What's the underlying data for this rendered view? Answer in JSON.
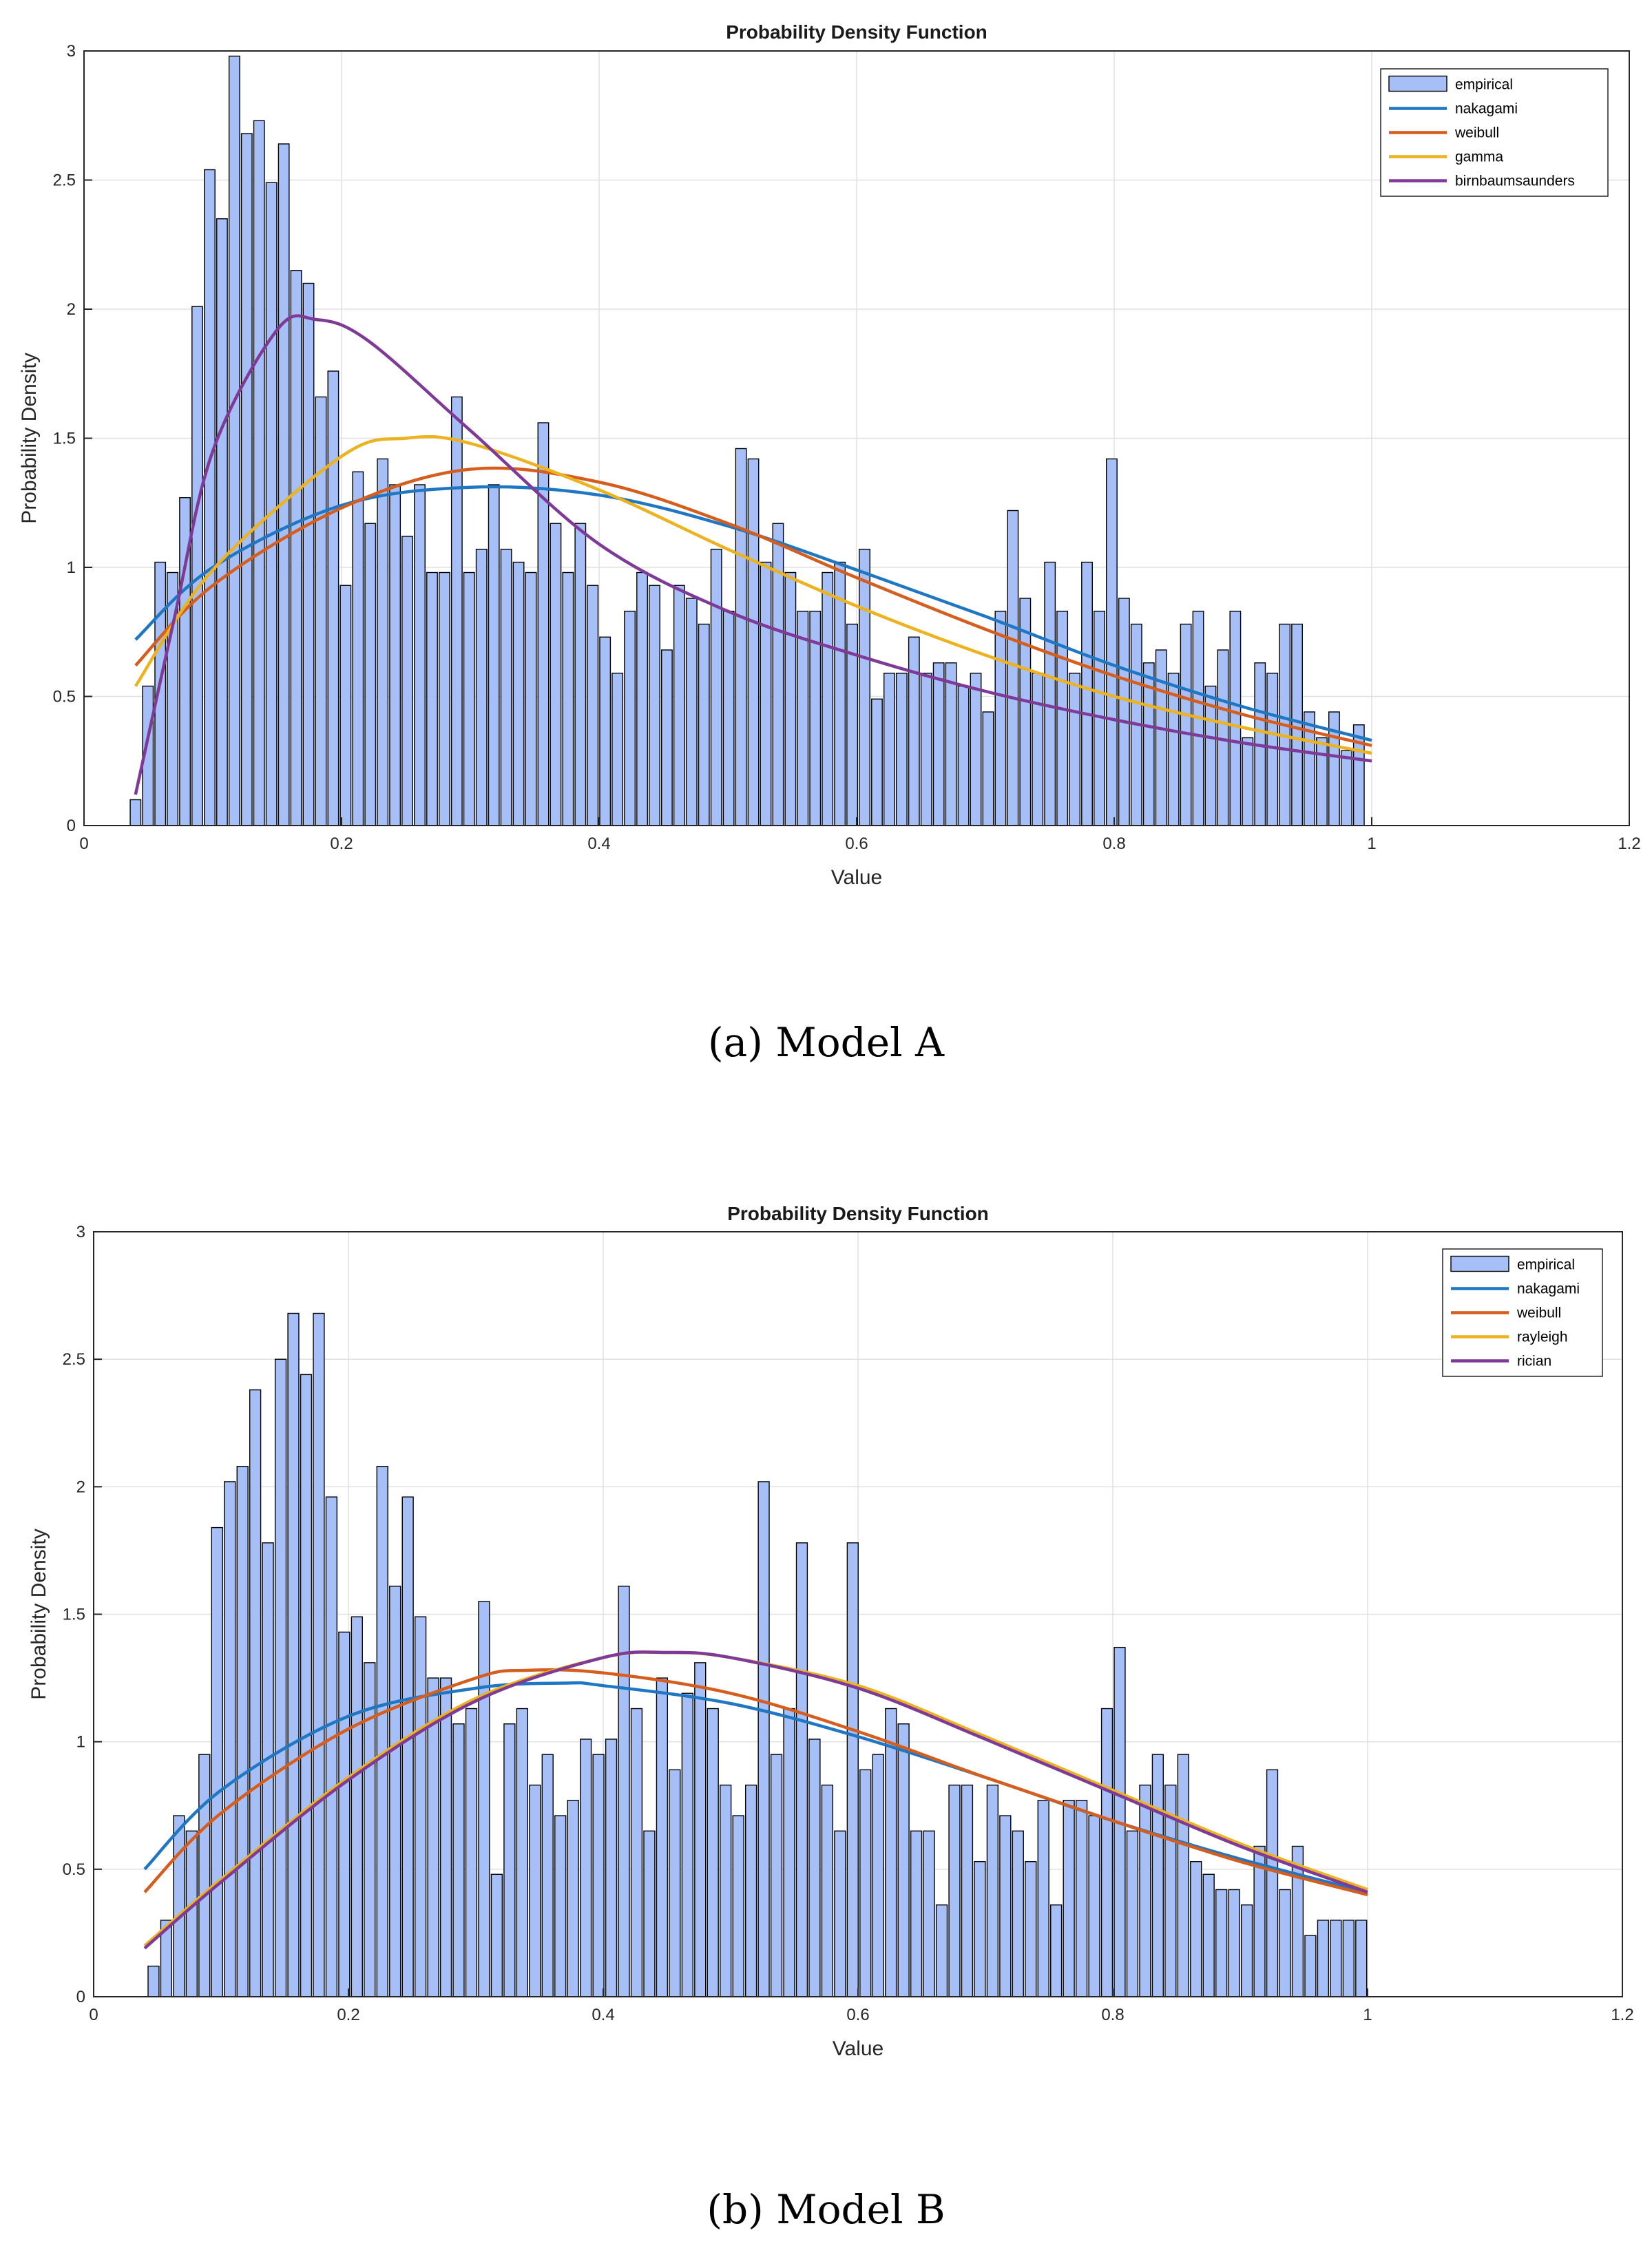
{
  "figures": [
    {
      "caption": "(a) Model A",
      "chart_data": {
        "type": "bar",
        "title": "Probability Density Function",
        "xlabel": "Value",
        "ylabel": "Probability Density",
        "xlim": [
          0,
          1.2
        ],
        "ylim": [
          0,
          3
        ],
        "xticks": [
          0,
          0.2,
          0.4,
          0.6,
          0.8,
          1,
          1.2
        ],
        "xtick_labels": [
          "0",
          "0.2",
          "0.4",
          "0.6",
          "0.8",
          "1",
          "1.2"
        ],
        "yticks": [
          0,
          0.5,
          1,
          1.5,
          2,
          2.5,
          3
        ],
        "ytick_labels": [
          "0",
          "0.5",
          "1",
          "1.5",
          "2",
          "2.5",
          "3"
        ],
        "grid": true,
        "legend_position": "top-right",
        "bar_x_start": 0.04,
        "bar_x_end": 0.99,
        "bar_values": [
          0.1,
          0.54,
          1.02,
          0.98,
          1.27,
          2.01,
          2.54,
          2.35,
          2.98,
          2.68,
          2.73,
          2.49,
          2.64,
          2.15,
          2.1,
          1.66,
          1.76,
          0.93,
          1.37,
          1.17,
          1.42,
          1.32,
          1.12,
          1.32,
          0.98,
          0.98,
          1.66,
          0.98,
          1.07,
          1.32,
          1.07,
          1.02,
          0.98,
          1.56,
          1.17,
          0.98,
          1.17,
          0.93,
          0.73,
          0.59,
          0.83,
          0.98,
          0.93,
          0.68,
          0.93,
          0.88,
          0.78,
          1.07,
          0.83,
          1.46,
          1.42,
          1.02,
          1.17,
          0.98,
          0.83,
          0.83,
          0.98,
          1.02,
          0.78,
          1.07,
          0.49,
          0.59,
          0.59,
          0.73,
          0.59,
          0.63,
          0.63,
          0.54,
          0.59,
          0.44,
          0.83,
          1.22,
          0.88,
          0.59,
          1.02,
          0.83,
          0.59,
          1.02,
          0.83,
          1.42,
          0.88,
          0.78,
          0.63,
          0.68,
          0.59,
          0.78,
          0.83,
          0.54,
          0.68,
          0.83,
          0.34,
          0.63,
          0.59,
          0.78,
          0.78,
          0.44,
          0.34,
          0.44,
          0.29,
          0.39
        ],
        "series": [
          {
            "name": "empirical",
            "kind": "bar",
            "color": "#a6bff7"
          },
          {
            "name": "nakagami",
            "kind": "line",
            "color": "#1f77c4",
            "x": [
              0.04,
              0.1,
              0.2,
              0.3,
              0.4,
              0.5,
              0.6,
              0.7,
              0.8,
              0.9,
              1.0
            ],
            "y": [
              0.72,
              1.0,
              1.24,
              1.31,
              1.28,
              1.16,
              0.99,
              0.81,
              0.62,
              0.46,
              0.33
            ]
          },
          {
            "name": "weibull",
            "kind": "line",
            "color": "#d55e1f",
            "x": [
              0.04,
              0.1,
              0.2,
              0.3,
              0.4,
              0.5,
              0.6,
              0.7,
              0.8,
              0.9,
              1.0
            ],
            "y": [
              0.62,
              0.93,
              1.23,
              1.38,
              1.33,
              1.17,
              0.96,
              0.76,
              0.58,
              0.43,
              0.31
            ]
          },
          {
            "name": "gamma",
            "kind": "line",
            "color": "#ecb21f",
            "x": [
              0.04,
              0.1,
              0.2,
              0.25,
              0.3,
              0.4,
              0.5,
              0.6,
              0.7,
              0.8,
              0.9,
              1.0
            ],
            "y": [
              0.54,
              0.99,
              1.43,
              1.5,
              1.48,
              1.3,
              1.07,
              0.85,
              0.66,
              0.5,
              0.38,
              0.28
            ]
          },
          {
            "name": "birnbaumsaunders",
            "kind": "line",
            "color": "#7e3a96",
            "x": [
              0.04,
              0.07,
              0.1,
              0.15,
              0.18,
              0.22,
              0.3,
              0.4,
              0.5,
              0.6,
              0.7,
              0.8,
              0.9,
              1.0
            ],
            "y": [
              0.12,
              0.8,
              1.45,
              1.92,
              1.96,
              1.88,
              1.53,
              1.09,
              0.83,
              0.66,
              0.52,
              0.41,
              0.32,
              0.25
            ]
          }
        ]
      }
    },
    {
      "caption": "(b) Model B",
      "chart_data": {
        "type": "bar",
        "title": "Probability Density Function",
        "xlabel": "Value",
        "ylabel": "Probability Density",
        "xlim": [
          0,
          1.2
        ],
        "ylim": [
          0,
          3
        ],
        "xticks": [
          0,
          0.2,
          0.4,
          0.6,
          0.8,
          1,
          1.2
        ],
        "xtick_labels": [
          "0",
          "0.2",
          "0.4",
          "0.6",
          "0.8",
          "1",
          "1.2"
        ],
        "yticks": [
          0,
          0.5,
          1,
          1.5,
          2,
          2.5,
          3
        ],
        "ytick_labels": [
          "0",
          "0.5",
          "1",
          "1.5",
          "2",
          "2.5",
          "3"
        ],
        "grid": true,
        "legend_position": "top-right",
        "bar_x_start": 0.047,
        "bar_x_end": 0.995,
        "bar_values": [
          0.12,
          0.3,
          0.71,
          0.65,
          0.95,
          1.84,
          2.02,
          2.08,
          2.38,
          1.78,
          2.5,
          2.68,
          2.44,
          2.68,
          1.96,
          1.43,
          1.49,
          1.31,
          2.08,
          1.61,
          1.96,
          1.49,
          1.25,
          1.25,
          1.07,
          1.13,
          1.55,
          0.48,
          1.07,
          1.13,
          0.83,
          0.95,
          0.71,
          0.77,
          1.01,
          0.95,
          1.01,
          1.61,
          1.13,
          0.65,
          1.25,
          0.89,
          1.19,
          1.31,
          1.13,
          0.83,
          0.71,
          0.83,
          2.02,
          0.95,
          1.13,
          1.78,
          1.01,
          0.83,
          0.65,
          1.78,
          0.89,
          0.95,
          1.13,
          1.07,
          0.65,
          0.65,
          0.36,
          0.83,
          0.83,
          0.53,
          0.83,
          0.71,
          0.65,
          0.53,
          0.77,
          0.36,
          0.77,
          0.77,
          0.71,
          1.13,
          1.37,
          0.65,
          0.83,
          0.95,
          0.83,
          0.95,
          0.53,
          0.48,
          0.42,
          0.42,
          0.36,
          0.59,
          0.89,
          0.42,
          0.59,
          0.24,
          0.3,
          0.3,
          0.3,
          0.3
        ],
        "series": [
          {
            "name": "empirical",
            "kind": "bar",
            "color": "#a6bff7"
          },
          {
            "name": "nakagami",
            "kind": "line",
            "color": "#1f77c4",
            "x": [
              0.04,
              0.1,
              0.2,
              0.3,
              0.37,
              0.4,
              0.5,
              0.6,
              0.7,
              0.8,
              0.9,
              1.0
            ],
            "y": [
              0.5,
              0.81,
              1.1,
              1.21,
              1.23,
              1.22,
              1.15,
              1.02,
              0.86,
              0.69,
              0.54,
              0.41
            ]
          },
          {
            "name": "weibull",
            "kind": "line",
            "color": "#d55e1f",
            "x": [
              0.04,
              0.1,
              0.2,
              0.3,
              0.34,
              0.4,
              0.5,
              0.6,
              0.7,
              0.8,
              0.9,
              1.0
            ],
            "y": [
              0.41,
              0.72,
              1.05,
              1.25,
              1.28,
              1.27,
              1.19,
              1.04,
              0.86,
              0.69,
              0.53,
              0.4
            ]
          },
          {
            "name": "rayleigh",
            "kind": "line",
            "color": "#ecb21f",
            "x": [
              0.04,
              0.1,
              0.2,
              0.3,
              0.4,
              0.45,
              0.5,
              0.6,
              0.7,
              0.8,
              0.9,
              1.0
            ],
            "y": [
              0.2,
              0.46,
              0.86,
              1.17,
              1.33,
              1.35,
              1.33,
              1.22,
              1.02,
              0.81,
              0.6,
              0.42
            ]
          },
          {
            "name": "rician",
            "kind": "line",
            "color": "#7e3a96",
            "x": [
              0.04,
              0.1,
              0.2,
              0.3,
              0.4,
              0.45,
              0.5,
              0.6,
              0.7,
              0.8,
              0.9,
              1.0
            ],
            "y": [
              0.19,
              0.45,
              0.85,
              1.16,
              1.33,
              1.35,
              1.33,
              1.21,
              1.01,
              0.8,
              0.59,
              0.41
            ]
          }
        ]
      }
    }
  ]
}
